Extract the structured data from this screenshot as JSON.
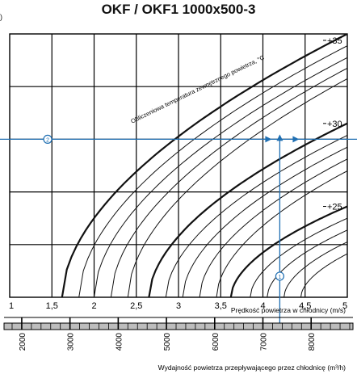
{
  "chart_data": {
    "type": "line",
    "title": "OKF / OKF1 1000x500-3",
    "corner_mark": ")",
    "xlabel": "Prędkość powietrza w chłodnicy (m/s)",
    "x2label": "Wydajność powietrza przepływającego przez chłodnicę (m³/h)",
    "curve_label": "Obliczeniowa temperatura zewnętrznego powietrza, °C",
    "xlim": [
      1,
      5
    ],
    "x_ticks": [
      1,
      1.5,
      2,
      2.5,
      3,
      3.5,
      4,
      4.5,
      5
    ],
    "x_tick_labels": [
      "1",
      "1,5",
      "2",
      "2,5",
      "3",
      "3,5",
      "4",
      "4,5",
      "5"
    ],
    "x2_ticks": [
      2000,
      3000,
      4000,
      5000,
      6000,
      7000,
      8000
    ],
    "x2_tick_labels": [
      "2000",
      "3000",
      "4000",
      "5000",
      "6000",
      "7000",
      "8000"
    ],
    "x2_per_x": 1750,
    "ylim": [
      0,
      1
    ],
    "series_labels": [
      {
        "text": "+35",
        "value": 35
      },
      {
        "text": "+30",
        "value": 30
      },
      {
        "text": "+25",
        "value": 25
      }
    ],
    "curves": [
      {
        "weight": "bold",
        "x_at_bottom": 1.62,
        "y_at_x5": 1.0
      },
      {
        "weight": "thin",
        "x_at_bottom": 1.82,
        "y_at_x5": 0.955
      },
      {
        "weight": "thin",
        "x_at_bottom": 2.0,
        "y_at_x5": 0.91
      },
      {
        "weight": "thin",
        "x_at_bottom": 2.2,
        "y_at_x5": 0.87
      },
      {
        "weight": "thin",
        "x_at_bottom": 2.4,
        "y_at_x5": 0.83
      },
      {
        "weight": "bold",
        "x_at_bottom": 2.65,
        "y_at_x5": 0.66
      },
      {
        "weight": "thin",
        "x_at_bottom": 2.85,
        "y_at_x5": 0.615
      },
      {
        "weight": "thin",
        "x_at_bottom": 3.05,
        "y_at_x5": 0.57
      },
      {
        "weight": "thin",
        "x_at_bottom": 3.25,
        "y_at_x5": 0.525
      },
      {
        "weight": "thin",
        "x_at_bottom": 3.45,
        "y_at_x5": 0.48
      },
      {
        "weight": "bold",
        "x_at_bottom": 3.62,
        "y_at_x5": 0.345
      },
      {
        "weight": "thin",
        "x_at_bottom": 3.85,
        "y_at_x5": 0.3
      },
      {
        "weight": "thin",
        "x_at_bottom": 4.05,
        "y_at_x5": 0.255
      },
      {
        "weight": "thin",
        "x_at_bottom": 4.25,
        "y_at_x5": 0.21
      },
      {
        "weight": "thin",
        "x_at_bottom": 4.45,
        "y_at_x5": 0.165
      }
    ],
    "example_line": {
      "x": 4.2,
      "y": 0.6,
      "marker_vertical": "1",
      "marker_horizontal": "2",
      "horizontal_marker_x": 1.45,
      "vertical_marker_y": 0.08
    },
    "colors": {
      "grid": "#000000",
      "curve": "#111111",
      "example": "#1f6fb2"
    }
  }
}
